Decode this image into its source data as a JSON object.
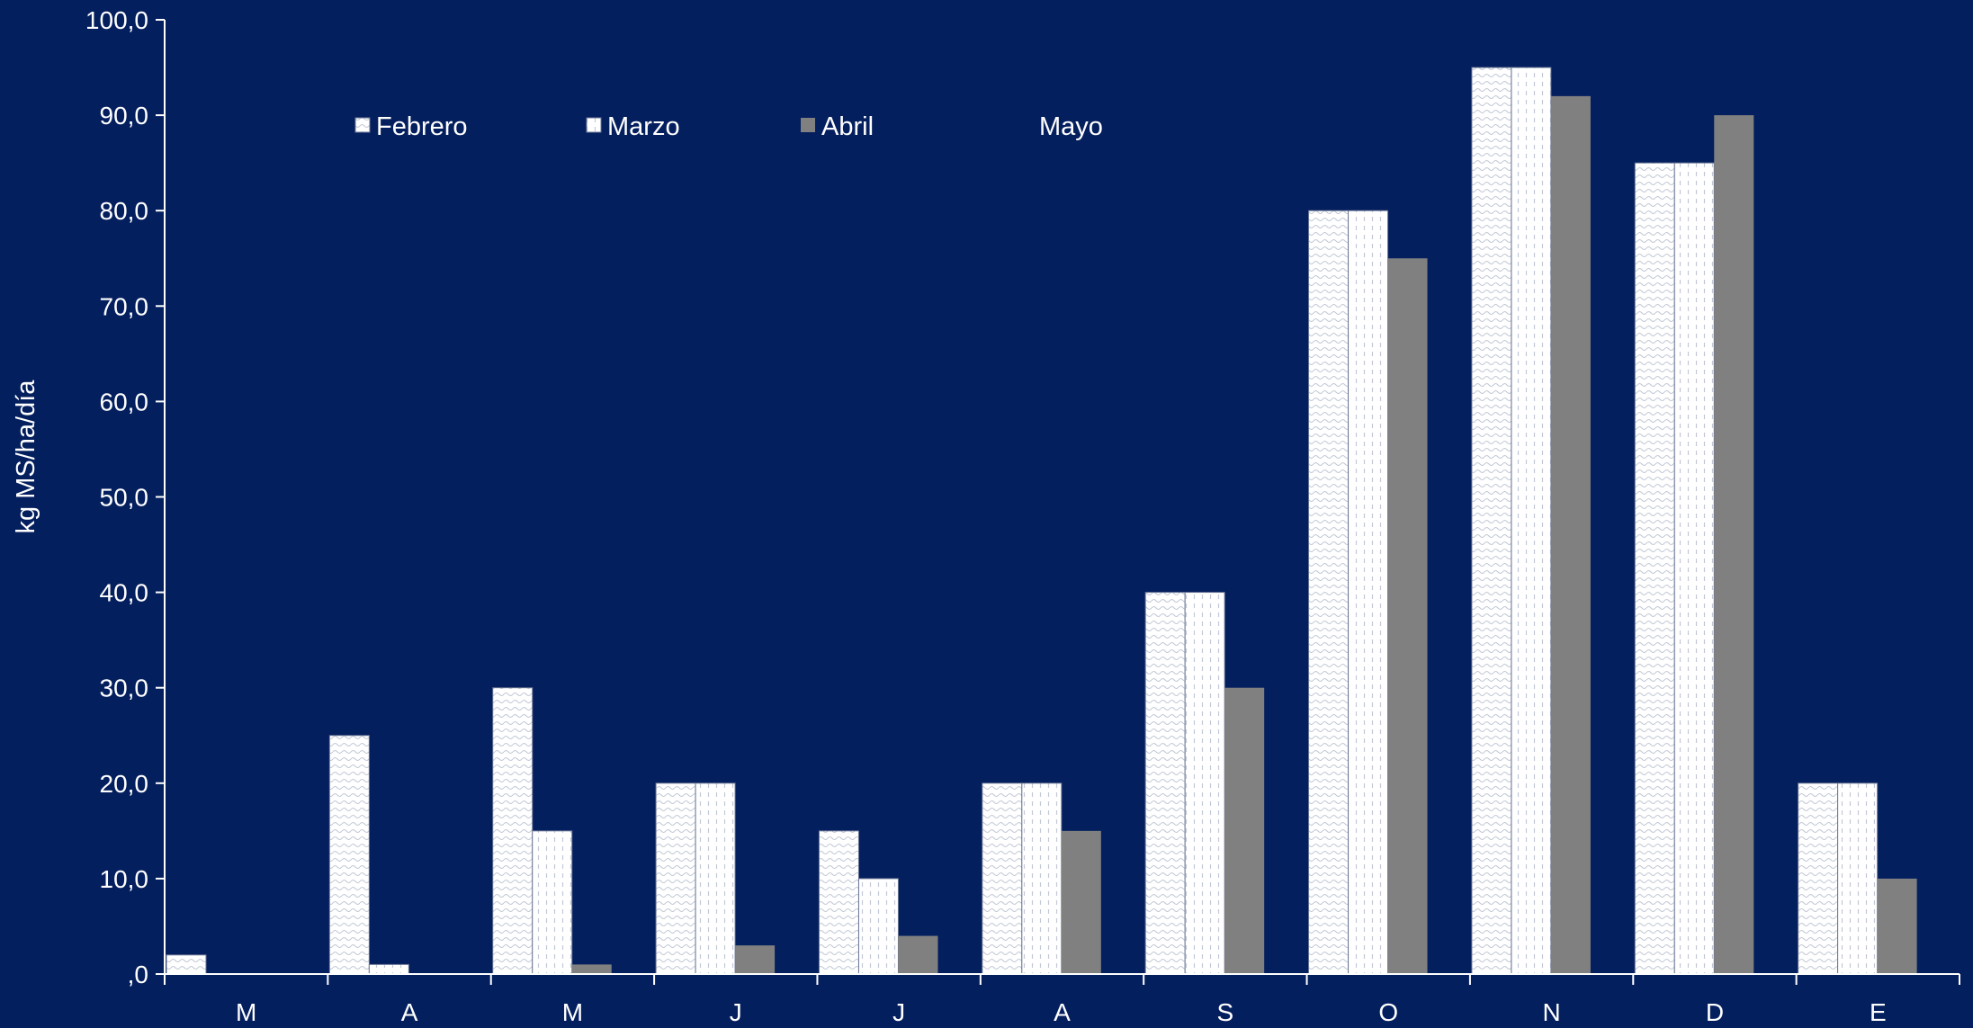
{
  "chart_data": {
    "type": "bar",
    "ylabel": "kg MS/ha/día",
    "ylim": [
      0,
      100
    ],
    "ytick_step": 10,
    "ytick_labels": [
      ",0",
      "10,0",
      "20,0",
      "30,0",
      "40,0",
      "50,0",
      "60,0",
      "70,0",
      "80,0",
      "90,0",
      "100,0"
    ],
    "categories": [
      "M",
      "A",
      "M",
      "J",
      "J",
      "A",
      "S",
      "O",
      "N",
      "D",
      "E"
    ],
    "series": [
      {
        "name": "Febrero",
        "pattern": "wave",
        "values": [
          2,
          25,
          30,
          20,
          15,
          20,
          40,
          80,
          95,
          85,
          20
        ]
      },
      {
        "name": "Marzo",
        "pattern": "dash",
        "values": [
          0,
          1,
          15,
          20,
          10,
          20,
          40,
          80,
          95,
          85,
          20
        ]
      },
      {
        "name": "Abril",
        "pattern": "solid",
        "values": [
          0,
          0,
          1,
          3,
          4,
          15,
          30,
          75,
          92,
          90,
          10
        ]
      },
      {
        "name": "Mayo",
        "pattern": "none",
        "values": [
          0,
          0,
          0,
          0,
          0,
          0,
          0,
          0,
          0,
          0,
          0
        ]
      }
    ],
    "legend_position": "top",
    "grid": false,
    "colors": {
      "background": "#041f5e",
      "bar_light": "#ffffff",
      "bar_pattern": "#c2c8d6",
      "bar_gray": "#808080",
      "axis": "#ffffff",
      "text": "#ffffff"
    }
  }
}
